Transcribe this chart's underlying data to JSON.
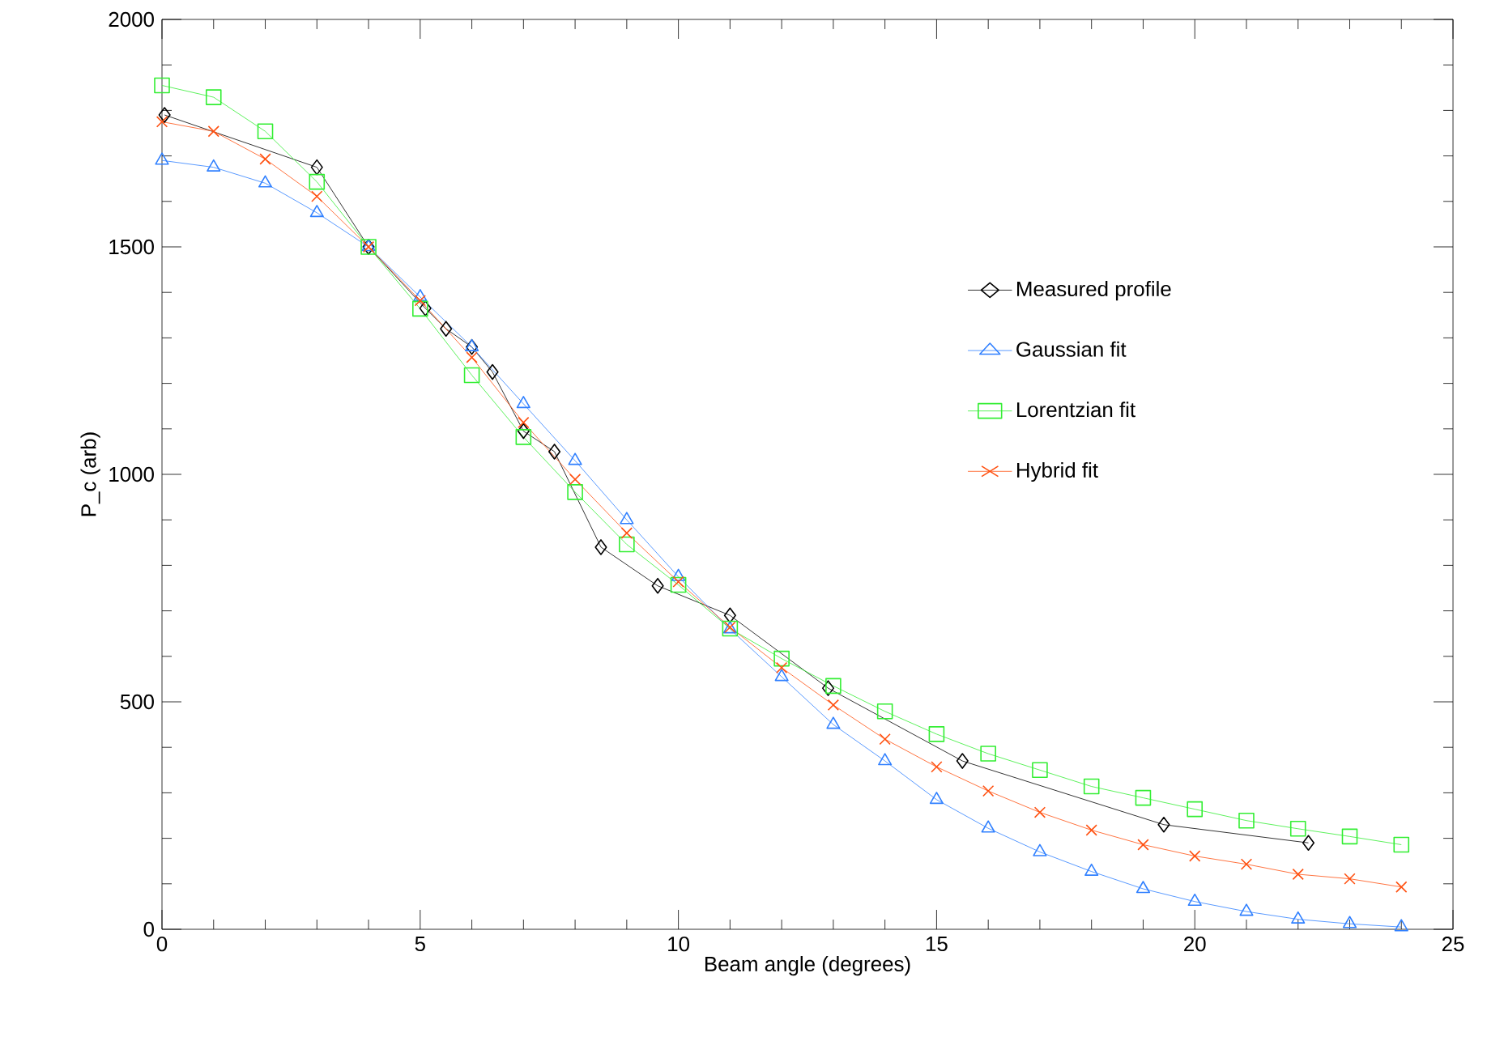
{
  "chart_data": {
    "type": "line",
    "xlabel": "Beam angle (degrees)",
    "ylabel": "P_c (arb)",
    "xlim": [
      0,
      25
    ],
    "xticks": [
      0,
      5,
      10,
      15,
      20,
      25
    ],
    "ylim": [
      0,
      2000
    ],
    "yticks": [
      0,
      500,
      1000,
      1500,
      2000
    ],
    "grid": false,
    "legend": "right",
    "line_style": "solid",
    "series": [
      {
        "name": "Measured profile",
        "color": "#000000",
        "marker": "diamond",
        "x": [
          0.05,
          3,
          4,
          5.1,
          5.5,
          6,
          6.4,
          7,
          7.6,
          8.5,
          9.6,
          11,
          12.9,
          15.5,
          19.4,
          22.2
        ],
        "values": [
          1790,
          1675,
          1500,
          1365,
          1320,
          1280,
          1225,
          1095,
          1050,
          840,
          755,
          690,
          530,
          370,
          230,
          190
        ]
      },
      {
        "name": "Gaussian fit",
        "color": "#3080ff",
        "marker": "triangle",
        "x": [
          0,
          1,
          2,
          3,
          4,
          5,
          6,
          7,
          8,
          9,
          10,
          11,
          12,
          13,
          14,
          15,
          16,
          17,
          18,
          19,
          20,
          21,
          22,
          23,
          24
        ],
        "values": [
          1690,
          1675,
          1640,
          1575,
          1500,
          1390,
          1280,
          1155,
          1030,
          900,
          775,
          660,
          555,
          450,
          370,
          285,
          222,
          170,
          127,
          89,
          61,
          39,
          22,
          12,
          5
        ]
      },
      {
        "name": "Lorentzian fit",
        "color": "#33ee33",
        "marker": "square",
        "x": [
          0,
          1,
          2,
          3,
          4,
          5,
          6,
          7,
          8,
          9,
          10,
          11,
          12,
          13,
          14,
          15,
          16,
          17,
          18,
          19,
          20,
          21,
          22,
          23,
          24
        ],
        "values": [
          1855,
          1829,
          1754,
          1643,
          1500,
          1364,
          1218,
          1082,
          961,
          846,
          757,
          661,
          595,
          535,
          479,
          429,
          386,
          350,
          314,
          289,
          264,
          239,
          221,
          204,
          186
        ]
      },
      {
        "name": "Hybrid fit",
        "color": "#ff5010",
        "marker": "cross",
        "x": [
          0,
          1,
          2,
          3,
          4,
          5,
          6,
          7,
          8,
          9,
          10,
          11,
          12,
          13,
          14,
          15,
          16,
          17,
          18,
          19,
          20,
          21,
          22,
          23,
          24
        ],
        "values": [
          1775,
          1754,
          1693,
          1611,
          1500,
          1382,
          1257,
          1114,
          989,
          871,
          764,
          664,
          575,
          493,
          418,
          357,
          304,
          257,
          218,
          186,
          161,
          143,
          121,
          111,
          93
        ]
      }
    ]
  }
}
